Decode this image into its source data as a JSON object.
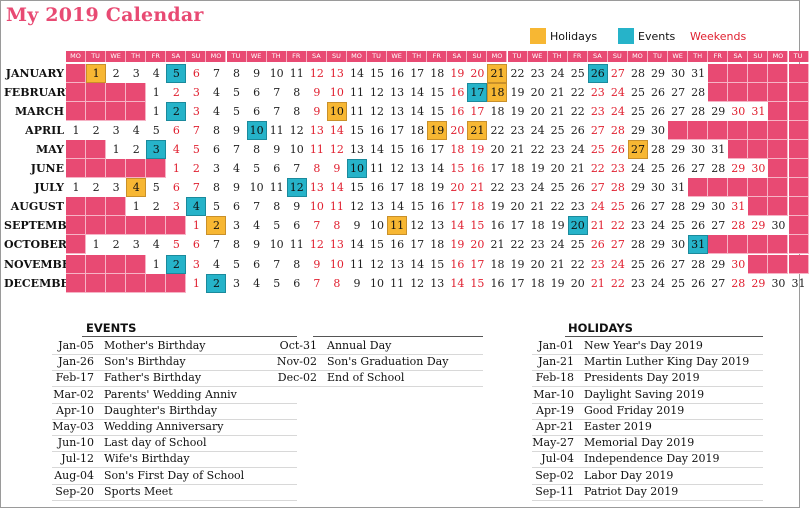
{
  "title": "My 2019 Calendar",
  "legend": {
    "holidays": "Holidays",
    "events": "Events",
    "weekends": "Weekends"
  },
  "colors": {
    "accent": "#e84a73",
    "holiday": "#f7b733",
    "event": "#26b3c9",
    "weekend_text": "#e02030"
  },
  "weekday_headers": [
    "MO",
    "TU",
    "WE",
    "TH",
    "FR",
    "SA",
    "SU"
  ],
  "months": [
    {
      "name": "JANUARY",
      "offset": 1,
      "days": 31
    },
    {
      "name": "FEBRUARY",
      "offset": 4,
      "days": 28
    },
    {
      "name": "MARCH",
      "offset": 4,
      "days": 31
    },
    {
      "name": "APRIL",
      "offset": 0,
      "days": 30
    },
    {
      "name": "MAY",
      "offset": 2,
      "days": 31
    },
    {
      "name": "JUNE",
      "offset": 5,
      "days": 30
    },
    {
      "name": "JULY",
      "offset": 0,
      "days": 31
    },
    {
      "name": "AUGUST",
      "offset": 3,
      "days": 31
    },
    {
      "name": "SEPTEMBER",
      "offset": 6,
      "days": 30
    },
    {
      "name": "OCTOBER",
      "offset": 1,
      "days": 31
    },
    {
      "name": "NOVEMBER",
      "offset": 4,
      "days": 30
    },
    {
      "name": "DECEMBER",
      "offset": 6,
      "days": 31
    }
  ],
  "events_title": "EVENTS",
  "events": [
    {
      "date": "Jan-05",
      "name": "Mother's Birthday"
    },
    {
      "date": "Jan-26",
      "name": "Son's Birthday"
    },
    {
      "date": "Feb-17",
      "name": "Father's Birthday"
    },
    {
      "date": "Mar-02",
      "name": "Parents' Wedding Anniv"
    },
    {
      "date": "Apr-10",
      "name": "Daughter's Birthday"
    },
    {
      "date": "May-03",
      "name": "Wedding Anniversary"
    },
    {
      "date": "Jun-10",
      "name": "Last day of School"
    },
    {
      "date": "Jul-12",
      "name": "Wife's Birthday"
    },
    {
      "date": "Aug-04",
      "name": "Son's First Day of School"
    },
    {
      "date": "Sep-20",
      "name": "Sports Meet"
    },
    {
      "date": "Oct-31",
      "name": "Annual Day"
    },
    {
      "date": "Nov-02",
      "name": "Son's Graduation Day"
    },
    {
      "date": "Dec-02",
      "name": "End of School"
    }
  ],
  "holidays_title": "HOLIDAYS",
  "holidays": [
    {
      "date": "Jan-01",
      "name": "New Year's Day 2019"
    },
    {
      "date": "Jan-21",
      "name": "Martin Luther King Day 2019"
    },
    {
      "date": "Feb-18",
      "name": "Presidents Day 2019"
    },
    {
      "date": "Mar-10",
      "name": "Daylight Saving 2019"
    },
    {
      "date": "Apr-19",
      "name": "Good Friday 2019"
    },
    {
      "date": "Apr-21",
      "name": "Easter 2019"
    },
    {
      "date": "May-27",
      "name": "Memorial Day 2019"
    },
    {
      "date": "Jul-04",
      "name": "Independence Day 2019"
    },
    {
      "date": "Sep-02",
      "name": "Labor Day 2019"
    },
    {
      "date": "Sep-11",
      "name": "Patriot Day 2019"
    }
  ]
}
